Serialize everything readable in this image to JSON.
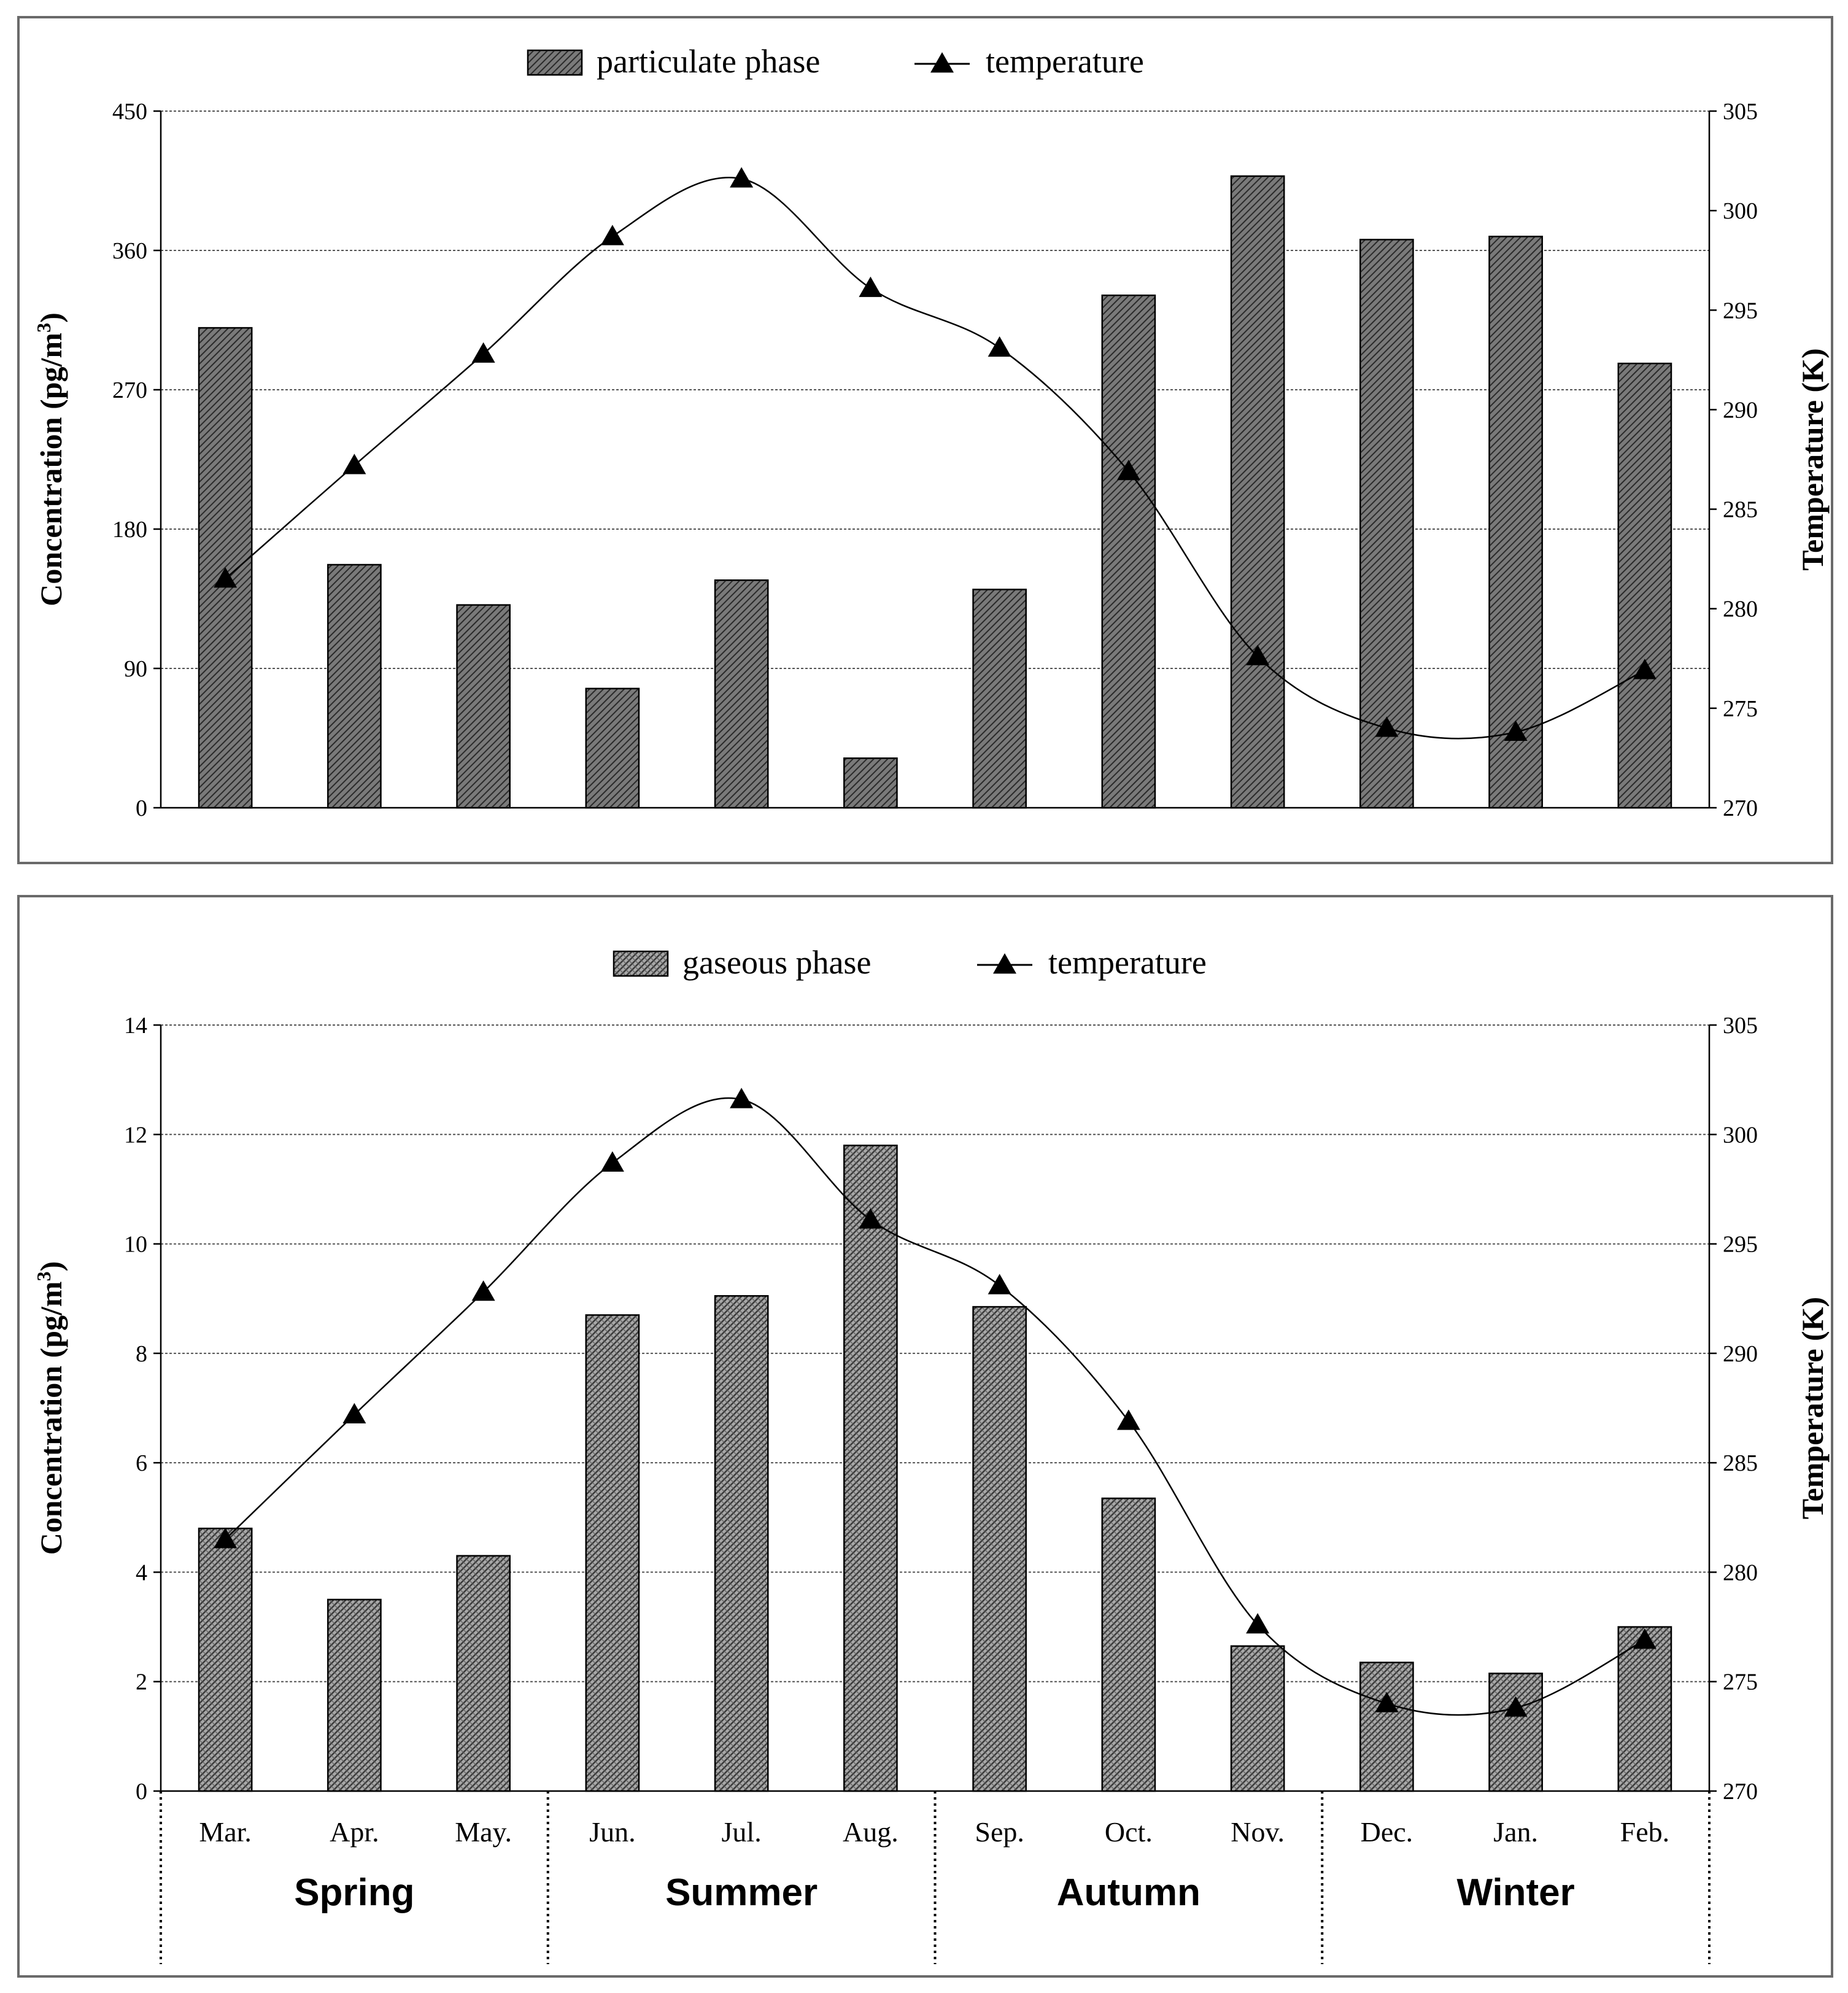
{
  "chart_data": [
    {
      "type": "bar",
      "title": "",
      "categories": [
        "Mar.",
        "Apr.",
        "May.",
        "Jun.",
        "Jul.",
        "Aug.",
        "Sep.",
        "Oct.",
        "Nov.",
        "Dec.",
        "Jan.",
        "Feb."
      ],
      "series": [
        {
          "name": "particulate phase",
          "kind": "bar",
          "axis": "left",
          "values": [
            310,
            157,
            131,
            77,
            147,
            32,
            141,
            331,
            408,
            367,
            369,
            287
          ]
        },
        {
          "name": "temperature",
          "kind": "line",
          "axis": "right",
          "values": [
            281.5,
            287.2,
            292.8,
            298.7,
            301.6,
            296.1,
            293.1,
            286.9,
            277.6,
            274.0,
            273.8,
            276.9
          ]
        }
      ],
      "legend": [
        "particulate phase",
        "temperature"
      ],
      "ylabel": "Concentration (pg/m³)",
      "ylabel_main": "Concentration (pg/m",
      "ylabel_sup": "3",
      "ylabel_close": ")",
      "y2label": "Temperature (K)",
      "ylim": [
        0,
        450
      ],
      "yticks": [
        "0",
        "90",
        "180",
        "270",
        "360",
        "450"
      ],
      "y2lim": [
        270,
        305
      ],
      "y2ticks": [
        "270",
        "275",
        "280",
        "285",
        "290",
        "295",
        "300",
        "305"
      ],
      "grid": true
    },
    {
      "type": "bar",
      "title": "",
      "categories": [
        "Mar.",
        "Apr.",
        "May.",
        "Jun.",
        "Jul.",
        "Aug.",
        "Sep.",
        "Oct.",
        "Nov.",
        "Dec.",
        "Jan.",
        "Feb."
      ],
      "series": [
        {
          "name": "gaseous phase",
          "kind": "bar",
          "axis": "left",
          "values": [
            4.8,
            3.5,
            4.3,
            8.7,
            9.05,
            11.8,
            8.85,
            5.35,
            2.65,
            2.35,
            2.15,
            3.0
          ]
        },
        {
          "name": "temperature",
          "kind": "line",
          "axis": "right",
          "values": [
            281.5,
            287.2,
            292.8,
            298.7,
            301.6,
            296.1,
            293.1,
            286.9,
            277.6,
            274.0,
            273.8,
            276.9
          ]
        }
      ],
      "legend": [
        "gaseous phase",
        "temperature"
      ],
      "ylabel": "Concentration (pg/m³)",
      "ylabel_main": "Concentration (pg/m",
      "ylabel_sup": "3",
      "ylabel_close": ")",
      "y2label": "Temperature (K)",
      "ylim": [
        0,
        14
      ],
      "yticks": [
        "0",
        "2",
        "4",
        "6",
        "8",
        "10",
        "12",
        "14"
      ],
      "y2lim": [
        270,
        305
      ],
      "y2ticks": [
        "270",
        "275",
        "280",
        "285",
        "290",
        "295",
        "300",
        "305"
      ],
      "seasons": [
        "Spring",
        "Summer",
        "Autumn",
        "Winter"
      ],
      "grid": true
    }
  ],
  "colors": {
    "bar_fill": "#9a9a9a",
    "bar_hatch": "#3a3a3a",
    "line": "#000000",
    "grid": "#555555",
    "frame": "#6a6a6a"
  }
}
